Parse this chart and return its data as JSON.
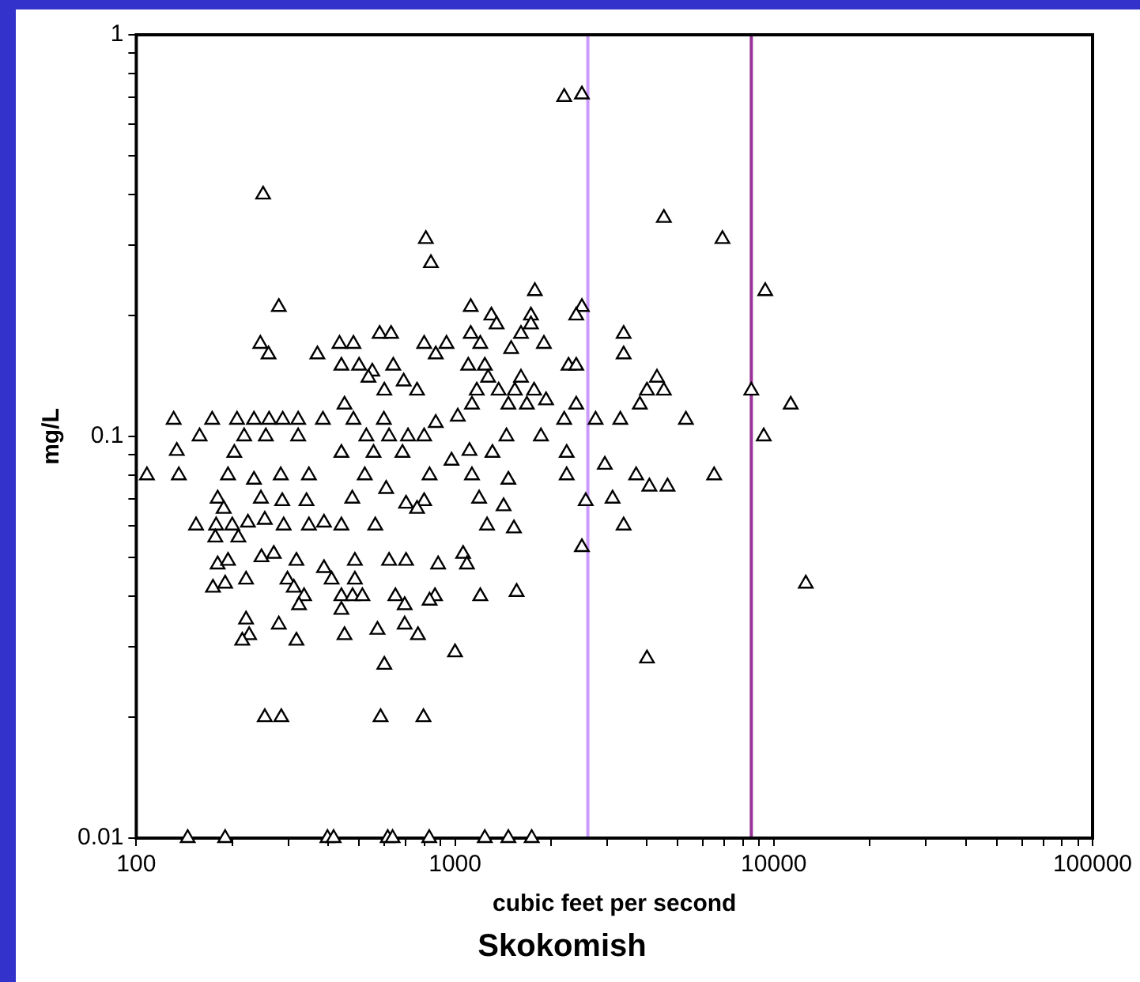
{
  "chart_data": {
    "type": "scatter",
    "title": "Skokomish",
    "xlabel": "cubic feet per second",
    "ylabel": "mg/L",
    "log": "xy",
    "grid": false,
    "marker": "triangle",
    "xlim": [
      100,
      100000
    ],
    "ylim": [
      0.01,
      1
    ],
    "xticks": [
      100,
      {
        "value": 200,
        "label": null
      },
      {
        "value": 300,
        "label": null
      },
      {
        "value": 400,
        "label": null
      },
      {
        "value": 500,
        "label": null
      },
      {
        "value": 600,
        "label": null
      },
      {
        "value": 700,
        "label": null
      },
      {
        "value": 800,
        "label": null
      },
      {
        "value": 900,
        "label": null
      },
      1000,
      {
        "value": 2000,
        "label": null
      },
      {
        "value": 3000,
        "label": null
      },
      {
        "value": 4000,
        "label": null
      },
      {
        "value": 5000,
        "label": null
      },
      {
        "value": 6000,
        "label": null
      },
      {
        "value": 7000,
        "label": null
      },
      {
        "value": 8000,
        "label": null
      },
      {
        "value": 9000,
        "label": null
      },
      10000,
      {
        "value": 20000,
        "label": null
      },
      {
        "value": 30000,
        "label": null
      },
      {
        "value": 40000,
        "label": null
      },
      {
        "value": 50000,
        "label": null
      },
      {
        "value": 60000,
        "label": null
      },
      {
        "value": 70000,
        "label": null
      },
      {
        "value": 80000,
        "label": null
      },
      {
        "value": 90000,
        "label": null
      },
      100000
    ],
    "yticks": [
      0.01,
      {
        "value": 0.02,
        "label": null
      },
      {
        "value": 0.03,
        "label": null
      },
      {
        "value": 0.04,
        "label": null
      },
      {
        "value": 0.05,
        "label": null
      },
      {
        "value": 0.06,
        "label": null
      },
      {
        "value": 0.07,
        "label": null
      },
      {
        "value": 0.08,
        "label": null
      },
      {
        "value": 0.09,
        "label": null
      },
      0.1,
      {
        "value": 0.2,
        "label": null
      },
      {
        "value": 0.3,
        "label": null
      },
      {
        "value": 0.4,
        "label": null
      },
      {
        "value": 0.5,
        "label": null
      },
      {
        "value": 0.6,
        "label": null
      },
      {
        "value": 0.7,
        "label": null
      },
      {
        "value": 0.8,
        "label": null
      },
      {
        "value": 0.9,
        "label": null
      },
      1
    ],
    "ref_lines": [
      {
        "axis": "x",
        "value": 2610,
        "color": "#cc99ff"
      },
      {
        "axis": "x",
        "value": 8500,
        "color": "#993399"
      }
    ],
    "series": [
      {
        "color": "#000000",
        "x": [
          2200,
          2500,
          250,
          4520,
          6900,
          810,
          840,
          1780,
          9400,
          280,
          1120,
          1300,
          2500,
          2400,
          1730,
          3380,
          580,
          630,
          1350,
          1120,
          1610,
          1730,
          245,
          260,
          370,
          434,
          480,
          800,
          870,
          940,
          1200,
          1500,
          1900,
          3380,
          440,
          500,
          550,
          640,
          1100,
          1240,
          2270,
          2400,
          535,
          690,
          760,
          600,
          1270,
          1610,
          4300,
          4520,
          4000,
          1170,
          1370,
          1540,
          1770,
          8500,
          1130,
          1470,
          1680,
          1930,
          2400,
          3800,
          11300,
          450,
          2200,
          2760,
          3300,
          5300,
          1020,
          131,
          173,
          207,
          234,
          261,
          288,
          322,
          385,
          480,
          598,
          870,
          158,
          218,
          255,
          322,
          527,
          621,
          712,
          800,
          1450,
          1860,
          9300,
          134,
          203,
          440,
          555,
          684,
          975,
          1110,
          1310,
          2240,
          2950,
          108,
          136,
          194,
          234,
          284,
          348,
          521,
          832,
          1130,
          1470,
          2240,
          3700,
          6500,
          4070,
          4640,
          246,
          287,
          342,
          476,
          608,
          702,
          800,
          1190,
          1420,
          2570,
          3120,
          180,
          188,
          154,
          178,
          200,
          224,
          253,
          290,
          348,
          388,
          440,
          562,
          760,
          1260,
          1530,
          3380,
          177,
          209,
          247,
          270,
          318,
          180,
          194,
          485,
          621,
          702,
          885,
          1060,
          1090,
          2500,
          388,
          410,
          485,
          298,
          174,
          190,
          221,
          312,
          336,
          440,
          477,
          512,
          650,
          865,
          832,
          695,
          324,
          440,
          1200,
          1560,
          12600,
          221,
          280,
          450,
          226,
          215,
          318,
          571,
          695,
          765,
          600,
          1000,
          4000,
          253,
          285,
          584,
          796,
          145,
          190,
          398,
          416,
          615,
          637,
          830,
          1240,
          1470,
          1740
        ],
        "values": [
          0.7,
          0.71,
          0.4,
          0.35,
          0.31,
          0.31,
          0.27,
          0.23,
          0.23,
          0.21,
          0.21,
          0.2,
          0.21,
          0.2,
          0.2,
          0.18,
          0.18,
          0.18,
          0.19,
          0.18,
          0.18,
          0.19,
          0.17,
          0.16,
          0.16,
          0.17,
          0.17,
          0.17,
          0.16,
          0.17,
          0.17,
          0.165,
          0.17,
          0.16,
          0.15,
          0.15,
          0.145,
          0.15,
          0.15,
          0.15,
          0.15,
          0.15,
          0.14,
          0.137,
          0.13,
          0.13,
          0.14,
          0.14,
          0.14,
          0.13,
          0.13,
          0.13,
          0.13,
          0.13,
          0.13,
          0.13,
          0.12,
          0.12,
          0.12,
          0.123,
          0.12,
          0.12,
          0.12,
          0.12,
          0.11,
          0.11,
          0.11,
          0.11,
          0.112,
          0.11,
          0.11,
          0.11,
          0.11,
          0.11,
          0.11,
          0.11,
          0.11,
          0.11,
          0.11,
          0.108,
          0.1,
          0.1,
          0.1,
          0.1,
          0.1,
          0.1,
          0.1,
          0.1,
          0.1,
          0.1,
          0.1,
          0.092,
          0.091,
          0.091,
          0.091,
          0.091,
          0.087,
          0.092,
          0.091,
          0.091,
          0.085,
          0.08,
          0.08,
          0.08,
          0.078,
          0.08,
          0.08,
          0.08,
          0.08,
          0.08,
          0.078,
          0.08,
          0.08,
          0.08,
          0.075,
          0.075,
          0.07,
          0.069,
          0.069,
          0.07,
          0.074,
          0.068,
          0.069,
          0.07,
          0.067,
          0.069,
          0.07,
          0.07,
          0.066,
          0.06,
          0.06,
          0.06,
          0.061,
          0.062,
          0.06,
          0.06,
          0.061,
          0.06,
          0.06,
          0.066,
          0.06,
          0.059,
          0.06,
          0.056,
          0.056,
          0.05,
          0.051,
          0.049,
          0.048,
          0.049,
          0.049,
          0.049,
          0.049,
          0.048,
          0.051,
          0.048,
          0.053,
          0.047,
          0.044,
          0.044,
          0.044,
          0.042,
          0.043,
          0.044,
          0.042,
          0.04,
          0.04,
          0.04,
          0.04,
          0.04,
          0.04,
          0.039,
          0.038,
          0.038,
          0.037,
          0.04,
          0.041,
          0.043,
          0.035,
          0.034,
          0.032,
          0.032,
          0.031,
          0.031,
          0.033,
          0.034,
          0.032,
          0.027,
          0.029,
          0.028,
          0.02,
          0.02,
          0.02,
          0.02,
          0.01,
          0.01,
          0.01,
          0.01,
          0.01,
          0.01,
          0.01,
          0.01,
          0.01,
          0.01
        ]
      }
    ]
  }
}
